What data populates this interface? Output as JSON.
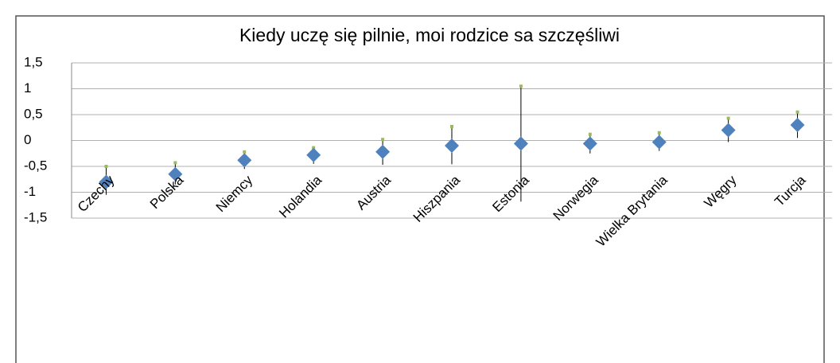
{
  "chart_data": {
    "type": "hilo",
    "title": "Kiedy uczę się pilnie, moi rodzice sa szczęśliwi",
    "categories": [
      "Czechy",
      "Polska",
      "Niemcy",
      "Holandia",
      "Austria",
      "Hiszpania",
      "Estonia",
      "Norwegia",
      "Wielka Brytania",
      "Węgry",
      "Turcja"
    ],
    "series": [
      {
        "color": "#9bbb59",
        "values": [
          -0.5,
          -0.43,
          -0.22,
          -0.14,
          0.02,
          0.27,
          1.05,
          0.12,
          0.15,
          0.43,
          0.55
        ]
      },
      {
        "color": "#000000",
        "values": [
          -1.05,
          -0.85,
          -0.55,
          -0.45,
          -0.47,
          -0.46,
          -1.18,
          -0.25,
          -0.2,
          -0.03,
          0.05
        ]
      },
      {
        "color": "#4f81bd",
        "values": [
          -0.8,
          -0.65,
          -0.38,
          -0.28,
          -0.22,
          -0.1,
          -0.06,
          -0.06,
          -0.03,
          0.2,
          0.3
        ]
      }
    ],
    "ylim": [
      -1.5,
      1.5
    ],
    "yticks": [
      {
        "value": 1.5,
        "label": "1,5"
      },
      1,
      {
        "value": 0.5,
        "label": "0,5"
      },
      0,
      {
        "value": -0.5,
        "label": "-0,5"
      },
      -1,
      {
        "value": -1.5,
        "label": "-1,5"
      }
    ],
    "grid": true
  }
}
